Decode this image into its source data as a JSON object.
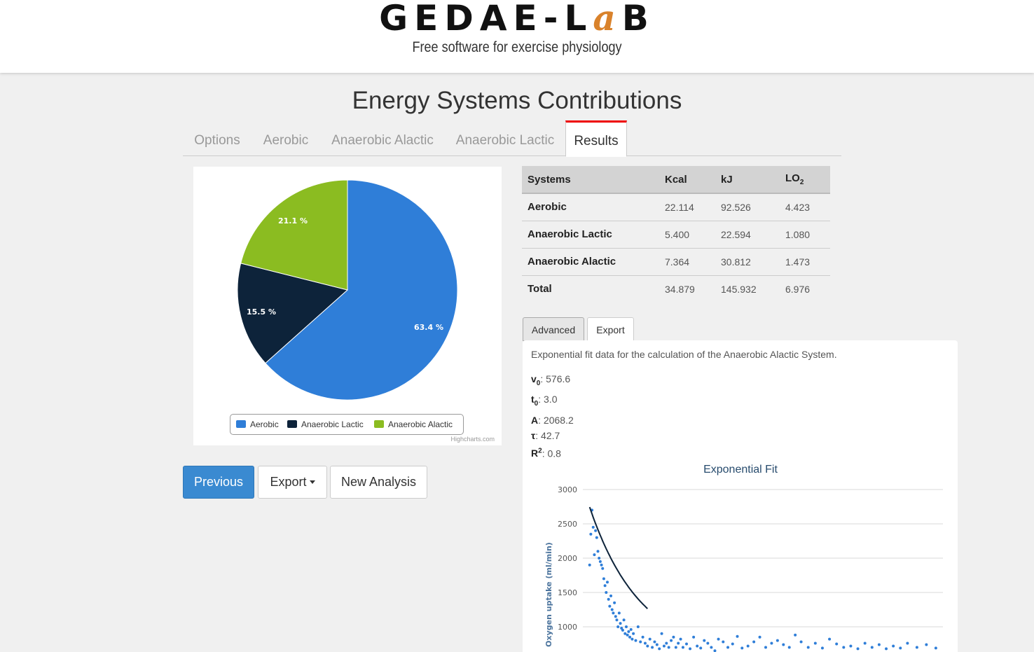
{
  "header": {
    "logo_main": "GEDAE-L",
    "logo_accent": "a",
    "logo_end": "B",
    "tagline": "Free software for exercise physiology"
  },
  "page": {
    "title": "Energy Systems Contributions"
  },
  "tabs": [
    {
      "label": "Options",
      "active": false
    },
    {
      "label": "Aerobic",
      "active": false
    },
    {
      "label": "Anaerobic Alactic",
      "active": false
    },
    {
      "label": "Anaerobic Lactic",
      "active": false
    },
    {
      "label": "Results",
      "active": true
    }
  ],
  "pie": {
    "labels": {
      "aerobic": "63.4 %",
      "lactic": "15.5 %",
      "alactic": "21.1 %"
    },
    "legend": [
      "Aerobic",
      "Anaerobic Lactic",
      "Anaerobic Alactic"
    ],
    "credits": "Highcharts.com",
    "colors": {
      "aerobic": "#2f7ed8",
      "lactic": "#0d233a",
      "alactic": "#8bbc21"
    }
  },
  "buttons": {
    "previous": "Previous",
    "export": "Export",
    "new_analysis": "New Analysis"
  },
  "table": {
    "headers": [
      "Systems",
      "Kcal",
      "kJ",
      "LO",
      "2"
    ],
    "rows": [
      {
        "system": "Aerobic",
        "kcal": "22.114",
        "kj": "92.526",
        "lo2": "4.423"
      },
      {
        "system": "Anaerobic Lactic",
        "kcal": "5.400",
        "kj": "22.594",
        "lo2": "1.080"
      },
      {
        "system": "Anaerobic Alactic",
        "kcal": "7.364",
        "kj": "30.812",
        "lo2": "1.473"
      },
      {
        "system": "Total",
        "kcal": "34.879",
        "kj": "145.932",
        "lo2": "6.976"
      }
    ]
  },
  "advanced": {
    "tabs": {
      "advanced": "Advanced",
      "export": "Export"
    },
    "description": "Exponential fit data for the calculation of the Anaerobic Alactic System.",
    "params": {
      "v0": {
        "sym": "v",
        "sub": "0",
        "value": ": 576.6"
      },
      "t0": {
        "sym": "t",
        "sub": "0",
        "value": ": 3.0"
      },
      "A": {
        "sym": "A",
        "value": ": 2068.2"
      },
      "tau": {
        "sym": "τ",
        "value": ": 42.7"
      },
      "r2": {
        "sym": "R",
        "sup": "2",
        "value": ": 0.8"
      }
    }
  },
  "chart_data": {
    "type": "scatter",
    "title": "Exponential Fit",
    "ylabel": "Oxygen uptake (ml/min)",
    "xlabel": "",
    "y_ticks": [
      "3000",
      "2500",
      "2000",
      "1500",
      "1000"
    ],
    "ylim": [
      600,
      3000
    ],
    "xlim": [
      0,
      300
    ],
    "grid": true,
    "fit": {
      "v0": 576.6,
      "t0": 3.0,
      "A": 2068.2,
      "tau": 42.7
    },
    "series": [
      {
        "name": "",
        "x": [
          1,
          2,
          3,
          4,
          5,
          6,
          7,
          8,
          9,
          10,
          11,
          12,
          13,
          14,
          15,
          16,
          17,
          18,
          19,
          20,
          21,
          22,
          23,
          24,
          25,
          26,
          27,
          28,
          29,
          30,
          31,
          32,
          33,
          34,
          35,
          36,
          37,
          38,
          40,
          42,
          44,
          46,
          48,
          50,
          52,
          54,
          56,
          58,
          60,
          62,
          64,
          66,
          68,
          70,
          72,
          74,
          76,
          78,
          80,
          83,
          86,
          89,
          92,
          95,
          98,
          101,
          104,
          107,
          110,
          114,
          118,
          122,
          126,
          130,
          135,
          140,
          145,
          150,
          155,
          160,
          165,
          170,
          175,
          180,
          186,
          192,
          198,
          204,
          210,
          216,
          222,
          228,
          234,
          240,
          246,
          252,
          258,
          264,
          270,
          278,
          286,
          294
        ],
        "y": [
          1900,
          2350,
          2700,
          2450,
          2050,
          2400,
          2300,
          2100,
          2000,
          1950,
          1900,
          1850,
          1700,
          1600,
          1500,
          1650,
          1400,
          1300,
          1450,
          1250,
          1200,
          1350,
          1150,
          1100,
          1000,
          1200,
          1050,
          980,
          950,
          1100,
          900,
          1000,
          880,
          930,
          850,
          960,
          820,
          900,
          800,
          1000,
          780,
          850,
          760,
          720,
          820,
          700,
          780,
          740,
          680,
          900,
          720,
          760,
          700,
          800,
          850,
          700,
          760,
          820,
          700,
          750,
          680,
          850,
          720,
          690,
          800,
          760,
          700,
          650,
          820,
          780,
          700,
          750,
          860,
          690,
          720,
          780,
          850,
          700,
          760,
          800,
          740,
          700,
          880,
          780,
          700,
          760,
          690,
          820,
          750,
          700,
          720,
          680,
          760,
          700,
          740,
          680,
          720,
          690,
          760,
          700,
          740,
          690
        ]
      }
    ]
  }
}
